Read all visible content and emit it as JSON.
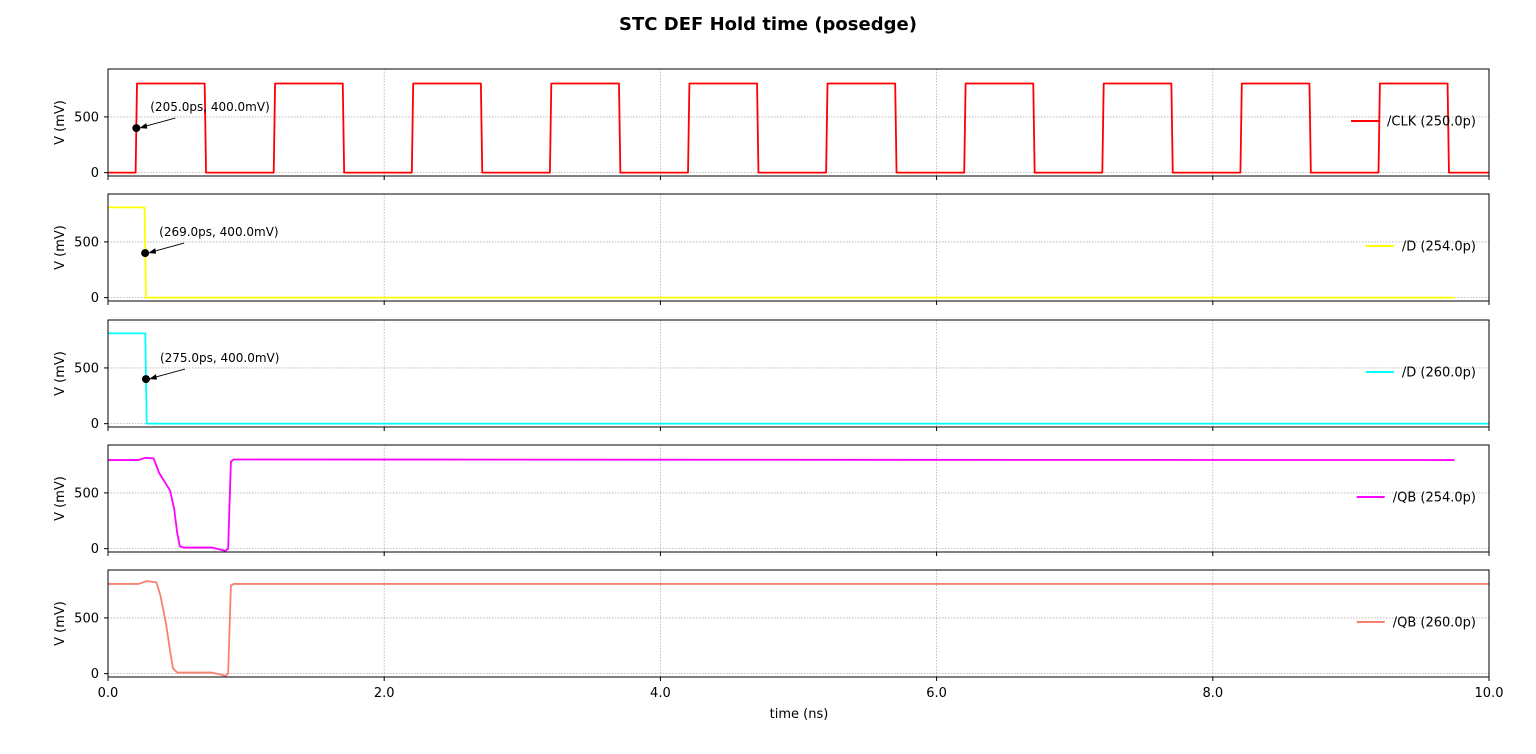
{
  "chart_data": {
    "type": "line",
    "title": "STC DEF Hold time (posedge)",
    "xlabel": "time (ns)",
    "ylabel": "V (mV)",
    "xlim": [
      0,
      10
    ],
    "ylim": [
      -30,
      930
    ],
    "x_ticks": [
      0,
      2,
      4,
      6,
      8,
      10
    ],
    "x_tick_labels": [
      "0.0",
      "2.0",
      "4.0",
      "6.0",
      "8.0",
      "10.0"
    ],
    "y_ticks": [
      0,
      500
    ],
    "y_tick_labels": [
      "0",
      "500"
    ],
    "grid": true,
    "legend_position": "right",
    "series": [
      {
        "name": "/CLK (250.0p)",
        "color": "#ff0000",
        "x": [
          0,
          0.2,
          0.21,
          0.7,
          0.71,
          1.2,
          1.21,
          1.7,
          1.71,
          2.2,
          2.21,
          2.7,
          2.71,
          3.2,
          3.21,
          3.7,
          3.71,
          4.2,
          4.21,
          4.7,
          4.71,
          5.2,
          5.21,
          5.7,
          5.71,
          6.2,
          6.21,
          6.7,
          6.71,
          7.2,
          7.21,
          7.7,
          7.71,
          8.2,
          8.21,
          8.7,
          8.71,
          9.2,
          9.21,
          9.7,
          9.71,
          10
        ],
        "y": [
          0,
          0,
          800,
          800,
          0,
          0,
          800,
          800,
          0,
          0,
          800,
          800,
          0,
          0,
          800,
          800,
          0,
          0,
          800,
          800,
          0,
          0,
          800,
          800,
          0,
          0,
          800,
          800,
          0,
          0,
          800,
          800,
          0,
          0,
          800,
          800,
          0,
          0,
          800,
          800,
          0,
          0
        ],
        "annotation": {
          "x": 0.205,
          "y": 400,
          "label": "(205.0ps, 400.0mV)"
        }
      },
      {
        "name": "/D (254.0p)",
        "color": "#ffff00",
        "x": [
          0,
          0.265,
          0.275,
          9.75
        ],
        "y": [
          810,
          810,
          0,
          0
        ],
        "annotation": {
          "x": 0.269,
          "y": 400,
          "label": "(269.0ps, 400.0mV)"
        }
      },
      {
        "name": "/D (260.0p)",
        "color": "#00ffff",
        "x": [
          0,
          0.27,
          0.28,
          10
        ],
        "y": [
          810,
          810,
          0,
          0
        ],
        "annotation": {
          "x": 0.275,
          "y": 400,
          "label": "(275.0ps, 400.0mV)"
        }
      },
      {
        "name": "/QB (254.0p)",
        "color": "#ff00ff",
        "x": [
          0,
          0.22,
          0.27,
          0.33,
          0.37,
          0.41,
          0.45,
          0.48,
          0.5,
          0.52,
          0.55,
          0.7,
          0.75,
          0.82,
          0.85,
          0.87,
          0.88,
          0.89,
          0.91,
          1.0,
          9.75
        ],
        "y": [
          795,
          795,
          815,
          810,
          680,
          600,
          520,
          350,
          150,
          20,
          10,
          10,
          10,
          -10,
          -20,
          0,
          400,
          780,
          800,
          800,
          795
        ]
      },
      {
        "name": "/QB (260.0p)",
        "color": "#fa8072",
        "x": [
          0,
          0.22,
          0.28,
          0.35,
          0.38,
          0.42,
          0.45,
          0.47,
          0.5,
          0.55,
          0.7,
          0.75,
          0.82,
          0.85,
          0.87,
          0.88,
          0.89,
          0.91,
          1.0,
          10
        ],
        "y": [
          805,
          805,
          830,
          820,
          700,
          450,
          200,
          50,
          10,
          10,
          10,
          10,
          -10,
          -20,
          0,
          400,
          790,
          805,
          805,
          805
        ]
      }
    ]
  }
}
